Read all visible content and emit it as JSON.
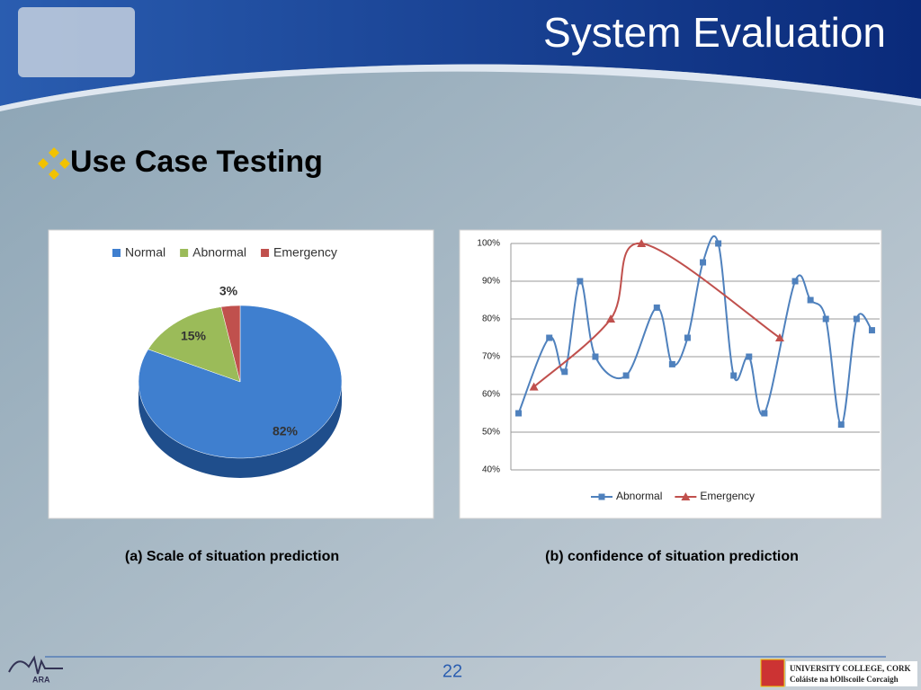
{
  "title": "System Evaluation",
  "bullet": "Use Case Testing",
  "captions": [
    "(a) Scale of situation prediction",
    "(b) confidence of situation prediction"
  ],
  "page_number": "22",
  "footer_logo": {
    "left": "ARA",
    "right": [
      "UNIVERSITY COLLEGE, CORK",
      "Coláiste na hOllscoile Corcaigh"
    ]
  },
  "chart_data": [
    {
      "type": "pie",
      "categories": [
        "Normal",
        "Abnormal",
        "Emergency"
      ],
      "values": [
        82,
        15,
        3
      ],
      "value_labels": [
        "82%",
        "15%",
        "3%"
      ],
      "colors": [
        "#3f7fcf",
        "#9bbb59",
        "#c0504d"
      ],
      "legend": "top"
    },
    {
      "type": "line",
      "xlim": [
        -0.5,
        23.5
      ],
      "ylim": [
        40,
        100
      ],
      "yticks": [
        {
          "value": 40,
          "label": "40%"
        },
        {
          "value": 50,
          "label": "50%"
        },
        {
          "value": 60,
          "label": "60%"
        },
        {
          "value": 70,
          "label": "70%"
        },
        {
          "value": 80,
          "label": "80%"
        },
        {
          "value": 90,
          "label": "90%"
        },
        {
          "value": 100,
          "label": "100%"
        }
      ],
      "grid": true,
      "legend": "bottom",
      "series": [
        {
          "name": "Abnormal",
          "color": "#4f81bd",
          "marker": "square",
          "x": [
            0,
            2,
            3,
            4,
            5,
            7,
            9,
            10,
            11,
            12,
            13,
            14,
            15,
            16,
            18,
            19,
            20,
            21,
            22,
            23
          ],
          "values": [
            55,
            75,
            66,
            90,
            70,
            65,
            83,
            68,
            75,
            95,
            100,
            65,
            70,
            55,
            90,
            85,
            80,
            52,
            80,
            77
          ]
        },
        {
          "name": "Emergency",
          "color": "#c0504d",
          "marker": "triangle",
          "x": [
            1,
            6,
            8,
            17
          ],
          "values": [
            62,
            80,
            100,
            75
          ]
        }
      ]
    }
  ]
}
